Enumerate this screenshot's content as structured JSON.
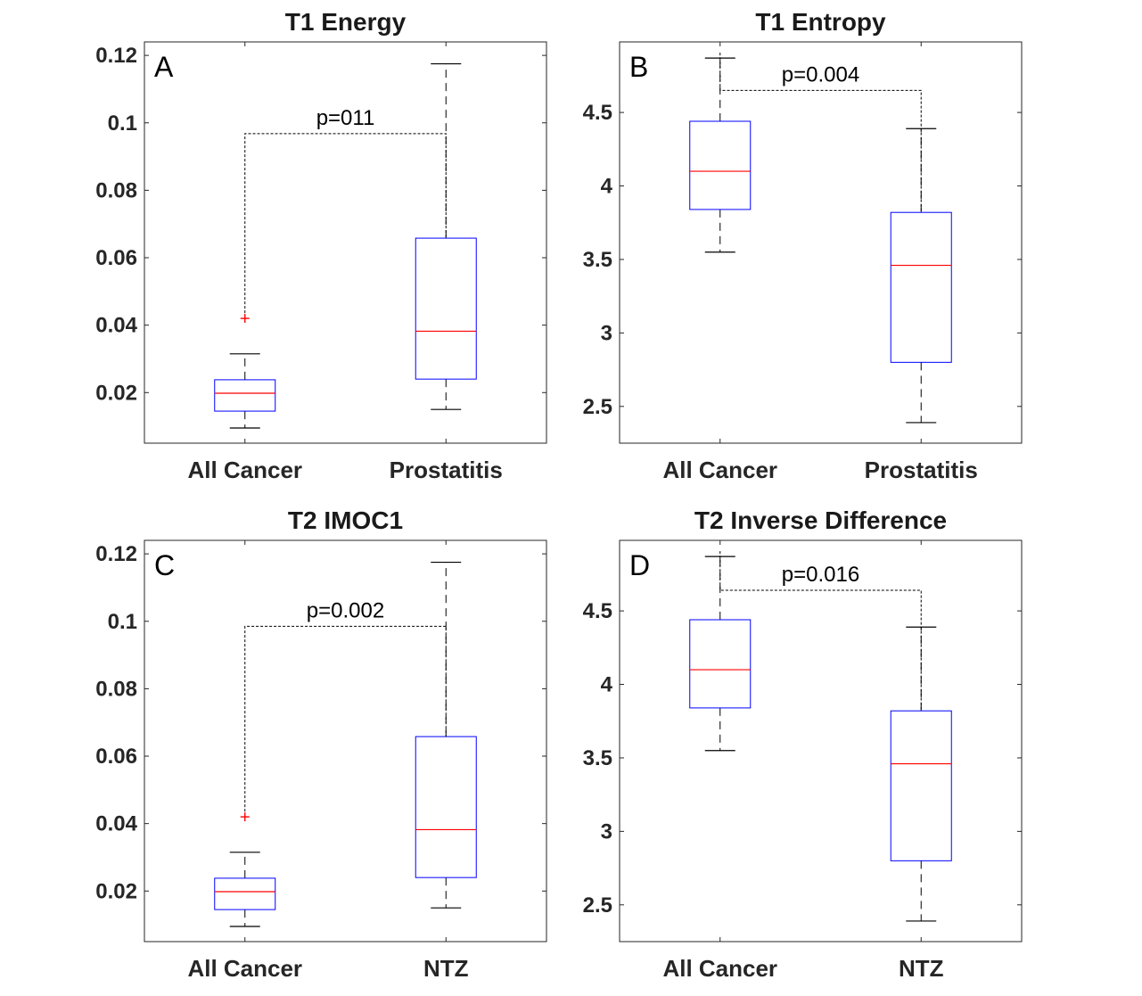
{
  "chart_data": [
    {
      "type": "box",
      "panel_label": "A",
      "title": "T1 Energy",
      "categories": [
        "All Cancer",
        "Prostatitis"
      ],
      "ylim": [
        0.005,
        0.124
      ],
      "yticks": [
        0.02,
        0.04,
        0.06,
        0.08,
        0.1,
        0.12
      ],
      "ytick_labels": [
        "0.02",
        "0.04",
        "0.06",
        "0.08",
        "0.1",
        "0.12"
      ],
      "boxes": [
        {
          "category": "All Cancer",
          "whisker_low": 0.0095,
          "q1": 0.0145,
          "median": 0.0198,
          "q3": 0.0238,
          "whisker_high": 0.0315,
          "outliers": [
            0.042
          ]
        },
        {
          "category": "Prostatitis",
          "whisker_low": 0.015,
          "q1": 0.024,
          "median": 0.0382,
          "q3": 0.0658,
          "whisker_high": 0.1175,
          "outliers": []
        }
      ],
      "significance": {
        "label": "p=011",
        "level": 0.0968
      }
    },
    {
      "type": "box",
      "panel_label": "B",
      "title": "T1 Entropy",
      "categories": [
        "All Cancer",
        "Prostatitis"
      ],
      "ylim": [
        2.25,
        4.98
      ],
      "yticks": [
        2.5,
        3,
        3.5,
        4,
        4.5
      ],
      "ytick_labels": [
        "2.5",
        "3",
        "3.5",
        "4",
        "4.5"
      ],
      "boxes": [
        {
          "category": "All Cancer",
          "whisker_low": 3.55,
          "q1": 3.84,
          "median": 4.1,
          "q3": 4.44,
          "whisker_high": 4.87,
          "outliers": []
        },
        {
          "category": "Prostatitis",
          "whisker_low": 2.39,
          "q1": 2.8,
          "median": 3.46,
          "q3": 3.82,
          "whisker_high": 4.39,
          "outliers": []
        }
      ],
      "significance": {
        "label": "p=0.004",
        "level": 4.65
      }
    },
    {
      "type": "box",
      "panel_label": "C",
      "title": "T2 IMOC1",
      "categories": [
        "All Cancer",
        "NTZ"
      ],
      "ylim": [
        0.005,
        0.124
      ],
      "yticks": [
        0.02,
        0.04,
        0.06,
        0.08,
        0.1,
        0.12
      ],
      "ytick_labels": [
        "0.02",
        "0.04",
        "0.06",
        "0.08",
        "0.1",
        "0.12"
      ],
      "boxes": [
        {
          "category": "All Cancer",
          "whisker_low": 0.0095,
          "q1": 0.0145,
          "median": 0.0198,
          "q3": 0.0238,
          "whisker_high": 0.0315,
          "outliers": [
            0.042
          ]
        },
        {
          "category": "NTZ",
          "whisker_low": 0.015,
          "q1": 0.024,
          "median": 0.0382,
          "q3": 0.0658,
          "whisker_high": 0.1175,
          "outliers": []
        }
      ],
      "significance": {
        "label": "p=0.002",
        "level": 0.0985
      }
    },
    {
      "type": "box",
      "panel_label": "D",
      "title": "T2 Inverse Difference",
      "categories": [
        "All Cancer",
        "NTZ"
      ],
      "ylim": [
        2.25,
        4.98
      ],
      "yticks": [
        2.5,
        3,
        3.5,
        4,
        4.5
      ],
      "ytick_labels": [
        "2.5",
        "3",
        "3.5",
        "4",
        "4.5"
      ],
      "boxes": [
        {
          "category": "All Cancer",
          "whisker_low": 3.55,
          "q1": 3.84,
          "median": 4.1,
          "q3": 4.44,
          "whisker_high": 4.87,
          "outliers": []
        },
        {
          "category": "NTZ",
          "whisker_low": 2.39,
          "q1": 2.8,
          "median": 3.46,
          "q3": 3.82,
          "whisker_high": 4.39,
          "outliers": []
        }
      ],
      "significance": {
        "label": "p=0.016",
        "level": 4.64
      }
    }
  ],
  "colors": {
    "box_edge": "#0000ff",
    "median": "#ff0000",
    "outlier": "#ff0000",
    "whisker": "#000000",
    "axes": "#262626"
  }
}
